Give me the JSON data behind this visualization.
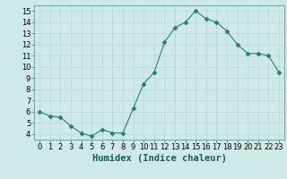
{
  "xlabel": "Humidex (Indice chaleur)",
  "x": [
    0,
    1,
    2,
    3,
    4,
    5,
    6,
    7,
    8,
    9,
    10,
    11,
    12,
    13,
    14,
    15,
    16,
    17,
    18,
    19,
    20,
    21,
    22,
    23
  ],
  "y": [
    6.0,
    5.6,
    5.5,
    4.7,
    4.1,
    3.8,
    4.4,
    4.1,
    4.1,
    6.3,
    8.5,
    9.5,
    12.2,
    13.5,
    14.0,
    15.0,
    14.3,
    14.0,
    13.2,
    12.0,
    11.2,
    11.2,
    11.0,
    9.5
  ],
  "line_color": "#2e7d6e",
  "marker": "D",
  "marker_size": 2.5,
  "bg_color": "#ceeae8",
  "grid_color": "#b8d8d5",
  "ylim": [
    3.5,
    15.5
  ],
  "xlim": [
    -0.5,
    23.5
  ],
  "yticks": [
    4,
    5,
    6,
    7,
    8,
    9,
    10,
    11,
    12,
    13,
    14,
    15
  ],
  "xticks": [
    0,
    1,
    2,
    3,
    4,
    5,
    6,
    7,
    8,
    9,
    10,
    11,
    12,
    13,
    14,
    15,
    16,
    17,
    18,
    19,
    20,
    21,
    22,
    23
  ],
  "tick_fontsize": 6,
  "xlabel_fontsize": 7.5
}
